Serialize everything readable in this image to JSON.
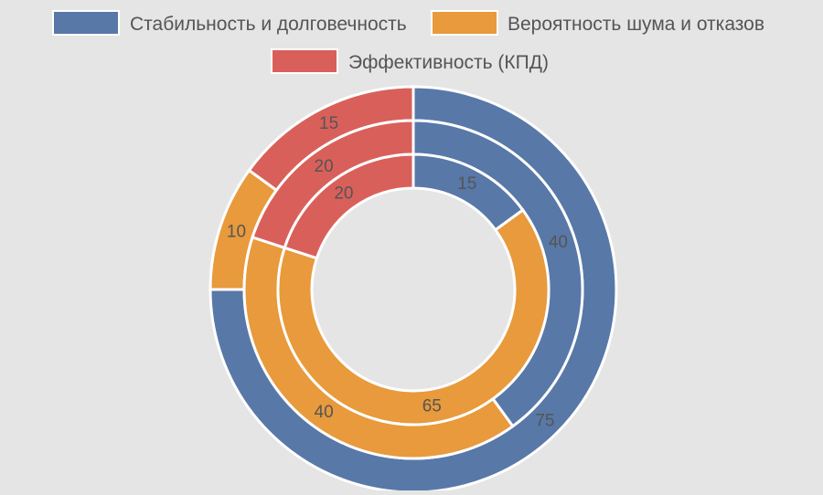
{
  "chart_data": {
    "type": "donut",
    "title": "",
    "legend_position": "top",
    "categories": [
      "Стабильность и долговечность",
      "Вероятность шума и отказов",
      "Эффективность (КПД)"
    ],
    "colors": [
      "#5878a8",
      "#e89a3c",
      "#d9605a"
    ],
    "rings": [
      {
        "values": [
          75,
          10,
          15
        ],
        "labels": [
          "75",
          "10",
          "15"
        ]
      },
      {
        "values": [
          40,
          40,
          20
        ],
        "labels": [
          "40",
          "40",
          "20"
        ]
      },
      {
        "values": [
          15,
          65,
          20
        ],
        "labels": [
          "15",
          "65",
          "20"
        ]
      }
    ]
  }
}
